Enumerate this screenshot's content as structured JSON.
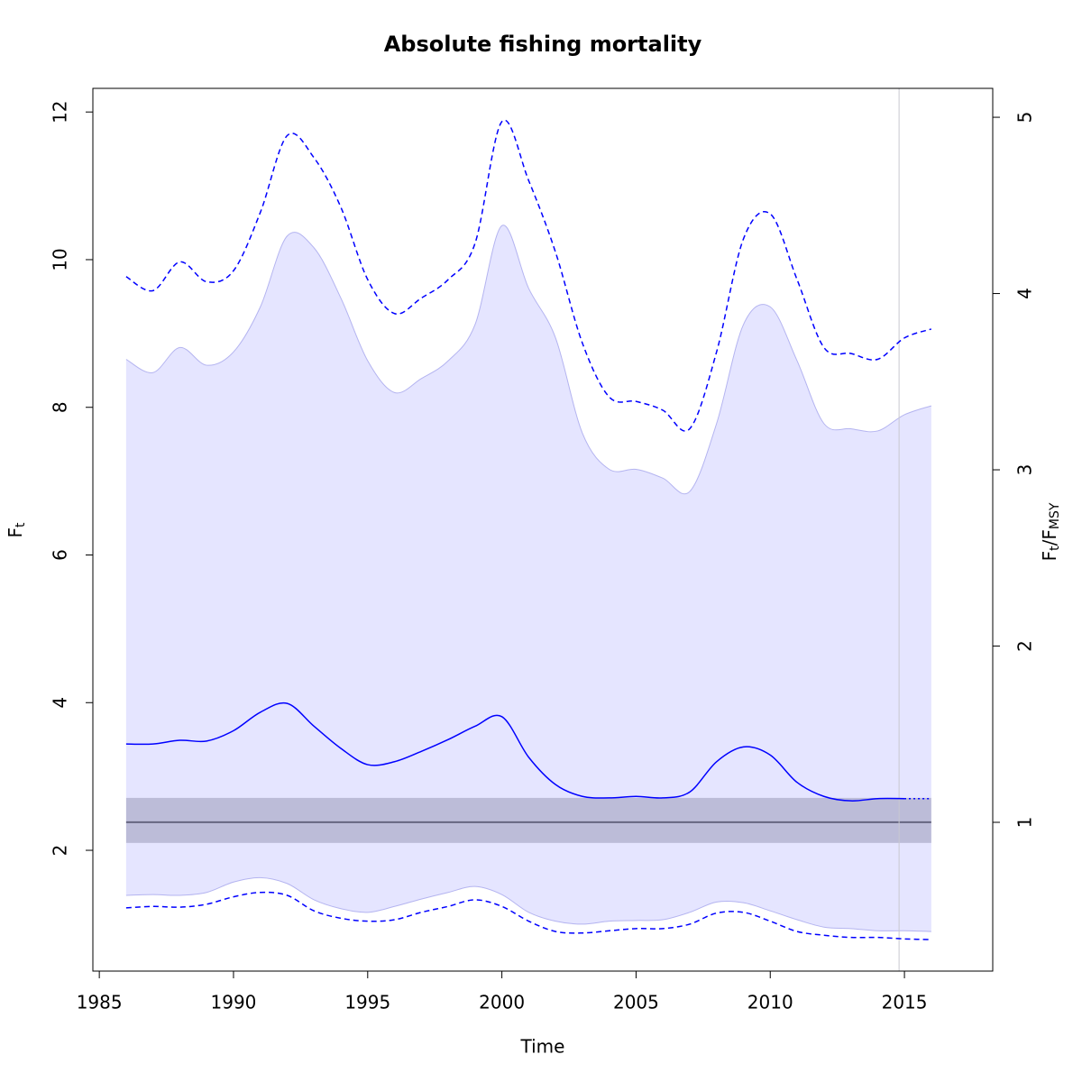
{
  "chart_data": {
    "type": "line",
    "title": "Absolute fishing mortality",
    "x_label": "Time",
    "y_label": {
      "main": "F",
      "sub": "t"
    },
    "y2_label": {
      "main": "F",
      "sub": "t",
      "main2": "/F",
      "sub2": "MSY"
    },
    "xlim": [
      1984.76,
      2018.29
    ],
    "xticks": [
      1985,
      1990,
      1995,
      2000,
      2005,
      2010,
      2015
    ],
    "ylim": [
      0.364,
      12.32
    ],
    "yticks": [
      2,
      4,
      6,
      8,
      10,
      12
    ],
    "y2lim": [
      0.156,
      5.164
    ],
    "y2ticks": [
      1,
      2,
      3,
      4,
      5
    ],
    "x": [
      1986,
      1987,
      1988,
      1989,
      1990,
      1991,
      1992,
      1993,
      1994,
      1995,
      1996,
      1997,
      1998,
      1999,
      2000,
      2001,
      2002,
      2003,
      2004,
      2005,
      2006,
      2007,
      2008,
      2009,
      2010,
      2011,
      2012,
      2013,
      2014,
      2015,
      2016
    ],
    "area": {
      "color": "#e5e5ff",
      "edge": "#b4b4f0",
      "upper": [
        8.65,
        8.47,
        8.81,
        8.57,
        8.75,
        9.36,
        10.32,
        10.16,
        9.48,
        8.63,
        8.2,
        8.39,
        8.63,
        9.12,
        10.46,
        9.61,
        8.94,
        7.65,
        7.16,
        7.16,
        7.04,
        6.86,
        7.78,
        9.12,
        9.36,
        8.63,
        7.78,
        7.71,
        7.68,
        7.9,
        8.02
      ],
      "lower": [
        1.39,
        1.4,
        1.39,
        1.43,
        1.57,
        1.63,
        1.55,
        1.33,
        1.21,
        1.16,
        1.24,
        1.34,
        1.43,
        1.51,
        1.4,
        1.16,
        1.04,
        1.0,
        1.04,
        1.05,
        1.06,
        1.16,
        1.3,
        1.29,
        1.18,
        1.06,
        0.96,
        0.94,
        0.91,
        0.91,
        0.9
      ]
    },
    "band": {
      "x": [
        1986,
        2016
      ],
      "lower": 2.1,
      "upper": 2.71,
      "reference": 2.38,
      "color": "#bcbcd8",
      "line_color": "#666680"
    },
    "vline": {
      "value": 2014.8,
      "color": "#c8c8d0"
    },
    "series": [
      {
        "color": "#0000ff",
        "style": "dashed",
        "values": [
          9.77,
          9.58,
          9.97,
          9.7,
          9.85,
          10.64,
          11.68,
          11.38,
          10.71,
          9.73,
          9.27,
          9.48,
          9.73,
          10.22,
          11.87,
          11.07,
          10.1,
          8.87,
          8.14,
          8.08,
          7.96,
          7.71,
          8.75,
          10.28,
          10.62,
          9.73,
          8.81,
          8.73,
          8.65,
          8.94,
          9.06
        ]
      },
      {
        "color": "#0000ff",
        "style": "solid",
        "values": [
          3.44,
          3.44,
          3.49,
          3.48,
          3.62,
          3.87,
          3.99,
          3.68,
          3.38,
          3.16,
          3.2,
          3.34,
          3.5,
          3.68,
          3.81,
          3.26,
          2.89,
          2.73,
          2.71,
          2.73,
          2.71,
          2.79,
          3.2,
          3.4,
          3.29,
          2.92,
          2.73,
          2.67,
          2.7,
          2.7,
          null
        ]
      },
      {
        "color": "#0000ff",
        "style": "dotted",
        "values": [
          null,
          null,
          null,
          null,
          null,
          null,
          null,
          null,
          null,
          null,
          null,
          null,
          null,
          null,
          null,
          null,
          null,
          null,
          null,
          null,
          null,
          null,
          null,
          null,
          null,
          null,
          null,
          null,
          null,
          2.7,
          2.7
        ]
      },
      {
        "color": "#0000ff",
        "style": "dashed",
        "values": [
          1.22,
          1.24,
          1.23,
          1.27,
          1.37,
          1.43,
          1.39,
          1.18,
          1.08,
          1.04,
          1.06,
          1.16,
          1.24,
          1.33,
          1.24,
          1.04,
          0.9,
          0.88,
          0.91,
          0.94,
          0.94,
          1.0,
          1.15,
          1.16,
          1.04,
          0.9,
          0.85,
          0.82,
          0.82,
          0.8,
          0.79
        ]
      }
    ]
  }
}
